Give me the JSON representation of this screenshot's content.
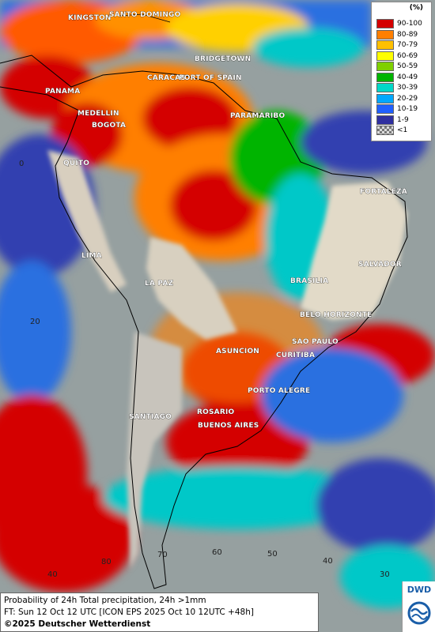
{
  "legend": {
    "title": "(%)",
    "entries": [
      {
        "label": "90-100",
        "color": "#d40000"
      },
      {
        "label": "80-89",
        "color": "#ff7f00"
      },
      {
        "label": "70-79",
        "color": "#ffc000"
      },
      {
        "label": "60-69",
        "color": "#ffff00"
      },
      {
        "label": "50-59",
        "color": "#7fd000"
      },
      {
        "label": "40-49",
        "color": "#00b400"
      },
      {
        "label": "30-39",
        "color": "#00d8c8"
      },
      {
        "label": "20-29",
        "color": "#00a8ff"
      },
      {
        "label": "10-19",
        "color": "#2060ff"
      },
      {
        "label": "1-9",
        "color": "#3030a0"
      },
      {
        "label": "<1",
        "color": "#b0b0b0"
      }
    ]
  },
  "cities": [
    "KINGSTON",
    "SANTO DOMINGO",
    "BRIDGETOWN",
    "CARACAS",
    "PORT OF SPAIN",
    "PANAMA",
    "MEDELLIN",
    "BOGOTA",
    "PARAMARIBO",
    "QUITO",
    "FORTALEZA",
    "LIMA",
    "SALVADOR",
    "LA PAZ",
    "BRASILIA",
    "BELO HORIZONTE",
    "SAO PAULO",
    "ASUNCION",
    "CURITIBA",
    "PORTO ALEGRE",
    "ROSARIO",
    "SANTIAGO",
    "BUENOS AIRES"
  ],
  "grid_labels": {
    "lat": [
      "0",
      "20",
      "40"
    ],
    "lon": [
      "70",
      "60",
      "50",
      "40",
      "30",
      "80"
    ]
  },
  "caption": {
    "line1": "Probability of 24h Total precipitation, 24h >1mm",
    "line2": "FT: Sun 12 Oct 12 UTC [ICON EPS 2025 Oct 10 12UTC +48h]",
    "line3": "©2025 Deutscher Wetterdienst"
  },
  "logo": {
    "text": "DWD",
    "color": "#1a5ea8"
  }
}
